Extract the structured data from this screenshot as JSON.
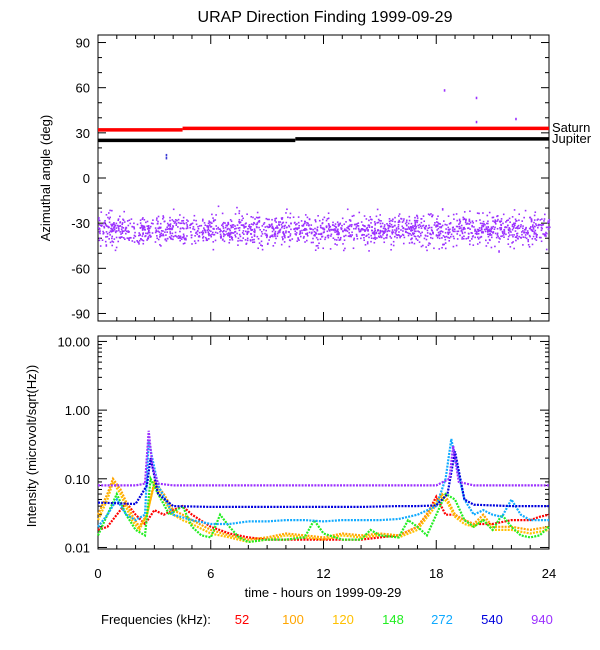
{
  "chart_data": [
    {
      "type": "scatter",
      "title": "URAP Direction Finding  1999-09-29",
      "ylabel": "Azimuthal angle (deg)",
      "xlim": [
        0,
        24
      ],
      "ylim": [
        -95,
        95
      ],
      "yticks": [
        90,
        60,
        30,
        0,
        -30,
        -60,
        -90
      ],
      "ytick_labels": [
        "90",
        "60",
        "30",
        "0",
        "-30",
        "-60",
        "-90"
      ],
      "reference_lines": [
        {
          "name": "Saturn",
          "color": "#ff0000",
          "segments": [
            [
              0,
              4.5,
              32
            ],
            [
              4.5,
              24,
              33
            ]
          ]
        },
        {
          "name": "Jupiter",
          "color": "#000000",
          "segments": [
            [
              0,
              10.5,
              25
            ],
            [
              10.5,
              24,
              26
            ]
          ]
        }
      ],
      "scatter_band": {
        "center": -34,
        "spread": 5,
        "color": "#9b30ff",
        "x_range": [
          0,
          24
        ]
      },
      "outliers": [
        {
          "x": 3.6,
          "y": 16
        },
        {
          "x": 3.6,
          "y": 14
        },
        {
          "x": 18.4,
          "y": 59
        },
        {
          "x": 20.1,
          "y": 54
        },
        {
          "x": 20.1,
          "y": 38
        },
        {
          "x": 22.2,
          "y": 40
        },
        {
          "x": 18.3,
          "y": -20
        },
        {
          "x": 19.2,
          "y": -27
        },
        {
          "x": 21.3,
          "y": -48
        },
        {
          "x": 0.4,
          "y": -44
        }
      ]
    },
    {
      "type": "line",
      "ylabel": "Intensity (microvolt/sqrt(Hz))",
      "xlabel": "time - hours on 1999-09-29",
      "xlim": [
        0,
        24
      ],
      "ylim": [
        0.0095,
        12
      ],
      "yscale": "log",
      "yticks": [
        10,
        1,
        0.1,
        0.01
      ],
      "ytick_labels": [
        "10.00",
        "1.00",
        "0.10",
        "0.01"
      ],
      "xticks": [
        0,
        6,
        12,
        18,
        24
      ],
      "xtick_labels": [
        "0",
        "6",
        "12",
        "18",
        "24"
      ],
      "legend": {
        "label": "Frequencies (kHz):",
        "entries": [
          {
            "name": "52",
            "color": "#ff0000"
          },
          {
            "name": "100",
            "color": "#ffa500"
          },
          {
            "name": "120",
            "color": "#ffc000"
          },
          {
            "name": "148",
            "color": "#22ee22"
          },
          {
            "name": "272",
            "color": "#10aaff"
          },
          {
            "name": "540",
            "color": "#0000dd"
          },
          {
            "name": "940",
            "color": "#9b30ff"
          }
        ]
      },
      "series": [
        {
          "name": "52",
          "color": "#ff0000",
          "x": [
            0,
            0.5,
            1,
            1.5,
            2,
            2.5,
            3,
            3.5,
            4,
            4.5,
            5,
            6,
            7,
            8,
            9,
            10,
            11,
            12,
            13,
            14,
            15,
            16,
            17,
            17.5,
            18,
            18.5,
            19,
            19.5,
            20,
            21,
            22,
            23,
            23.5,
            24
          ],
          "y": [
            0.018,
            0.02,
            0.03,
            0.045,
            0.03,
            0.022,
            0.035,
            0.03,
            0.035,
            0.04,
            0.03,
            0.02,
            0.016,
            0.014,
            0.013,
            0.013,
            0.013,
            0.013,
            0.013,
            0.013,
            0.014,
            0.015,
            0.02,
            0.03,
            0.055,
            0.03,
            0.03,
            0.025,
            0.022,
            0.022,
            0.025,
            0.025,
            0.028,
            0.03
          ]
        },
        {
          "name": "100",
          "color": "#ffa500",
          "x": [
            0,
            0.5,
            0.8,
            1.2,
            1.8,
            2.2,
            2.6,
            3,
            3.5,
            4,
            4.5,
            5,
            6,
            7,
            8,
            9,
            10,
            11,
            12,
            13,
            14,
            15,
            16,
            17,
            17.8,
            18.3,
            18.6,
            19,
            19.5,
            20,
            20.5,
            21,
            22,
            23,
            24
          ],
          "y": [
            0.03,
            0.06,
            0.1,
            0.07,
            0.03,
            0.02,
            0.03,
            0.09,
            0.06,
            0.035,
            0.03,
            0.025,
            0.018,
            0.015,
            0.013,
            0.014,
            0.016,
            0.015,
            0.014,
            0.016,
            0.015,
            0.016,
            0.015,
            0.02,
            0.04,
            0.06,
            0.05,
            0.03,
            0.025,
            0.022,
            0.03,
            0.02,
            0.02,
            0.018,
            0.02
          ]
        },
        {
          "name": "120",
          "color": "#ffc000",
          "x": [
            0,
            0.5,
            0.8,
            1.2,
            1.8,
            2.2,
            2.6,
            3,
            3.5,
            4,
            4.5,
            5,
            6,
            7,
            8,
            9,
            10,
            11,
            12,
            13,
            14,
            15,
            16,
            17,
            17.8,
            18.3,
            18.6,
            19,
            19.5,
            20,
            20.5,
            21,
            22,
            23,
            24
          ],
          "y": [
            0.025,
            0.05,
            0.09,
            0.06,
            0.025,
            0.018,
            0.03,
            0.085,
            0.05,
            0.03,
            0.025,
            0.022,
            0.016,
            0.014,
            0.012,
            0.013,
            0.015,
            0.014,
            0.013,
            0.015,
            0.014,
            0.015,
            0.014,
            0.018,
            0.035,
            0.055,
            0.045,
            0.028,
            0.022,
            0.02,
            0.026,
            0.018,
            0.018,
            0.016,
            0.018
          ]
        },
        {
          "name": "148",
          "color": "#22ee22",
          "x": [
            0,
            0.5,
            1,
            1.5,
            2,
            2.5,
            2.8,
            3.2,
            3.8,
            4.5,
            5,
            5.5,
            6,
            6.5,
            7,
            7.5,
            8,
            9,
            10,
            11,
            11.5,
            12,
            13,
            14,
            14.5,
            15,
            16,
            16.5,
            17,
            17.5,
            18,
            18.5,
            19,
            19.5,
            20,
            20.5,
            21,
            21.5,
            22,
            22.5,
            23,
            23.5,
            24
          ],
          "y": [
            0.015,
            0.03,
            0.06,
            0.03,
            0.018,
            0.015,
            0.1,
            0.06,
            0.03,
            0.04,
            0.02,
            0.015,
            0.014,
            0.03,
            0.02,
            0.014,
            0.012,
            0.013,
            0.013,
            0.014,
            0.025,
            0.016,
            0.013,
            0.013,
            0.018,
            0.015,
            0.014,
            0.025,
            0.02,
            0.015,
            0.03,
            0.06,
            0.05,
            0.025,
            0.02,
            0.025,
            0.018,
            0.03,
            0.02,
            0.015,
            0.014,
            0.015,
            0.02
          ]
        },
        {
          "name": "272",
          "color": "#10aaff",
          "x": [
            0,
            0.5,
            1,
            1.5,
            2,
            2.5,
            2.7,
            3.2,
            4,
            5,
            6,
            7,
            8,
            9,
            10,
            11,
            12,
            13,
            14,
            15,
            16,
            17,
            18,
            18.5,
            18.8,
            19.1,
            19.5,
            20,
            20.5,
            21,
            21.5,
            22,
            22.5,
            23,
            24
          ],
          "y": [
            0.02,
            0.03,
            0.05,
            0.03,
            0.025,
            0.03,
            0.35,
            0.08,
            0.03,
            0.025,
            0.022,
            0.022,
            0.024,
            0.024,
            0.025,
            0.025,
            0.024,
            0.025,
            0.025,
            0.025,
            0.026,
            0.03,
            0.04,
            0.1,
            0.38,
            0.15,
            0.05,
            0.03,
            0.035,
            0.03,
            0.028,
            0.05,
            0.03,
            0.025,
            0.025
          ]
        },
        {
          "name": "540",
          "color": "#0000dd",
          "x": [
            0,
            1,
            2,
            2.6,
            2.8,
            3.2,
            4,
            6,
            8,
            10,
            12,
            14,
            16,
            17,
            18,
            18.6,
            19,
            19.5,
            20,
            21,
            22,
            23,
            24
          ],
          "y": [
            0.045,
            0.044,
            0.043,
            0.08,
            0.2,
            0.06,
            0.04,
            0.039,
            0.039,
            0.039,
            0.039,
            0.039,
            0.04,
            0.04,
            0.041,
            0.06,
            0.25,
            0.05,
            0.042,
            0.041,
            0.04,
            0.04,
            0.04
          ]
        },
        {
          "name": "940",
          "color": "#9b30ff",
          "x": [
            0,
            1,
            2,
            2.5,
            2.7,
            2.9,
            3.2,
            4,
            6,
            8,
            10,
            12,
            14,
            16,
            18,
            18.7,
            18.9,
            19.2,
            20,
            22,
            24
          ],
          "y": [
            0.08,
            0.08,
            0.08,
            0.085,
            0.5,
            0.15,
            0.085,
            0.08,
            0.08,
            0.08,
            0.08,
            0.08,
            0.08,
            0.08,
            0.08,
            0.1,
            0.3,
            0.09,
            0.08,
            0.08,
            0.08
          ]
        }
      ]
    }
  ],
  "planets": {
    "saturn": "Saturn",
    "jupiter": "Jupiter"
  }
}
